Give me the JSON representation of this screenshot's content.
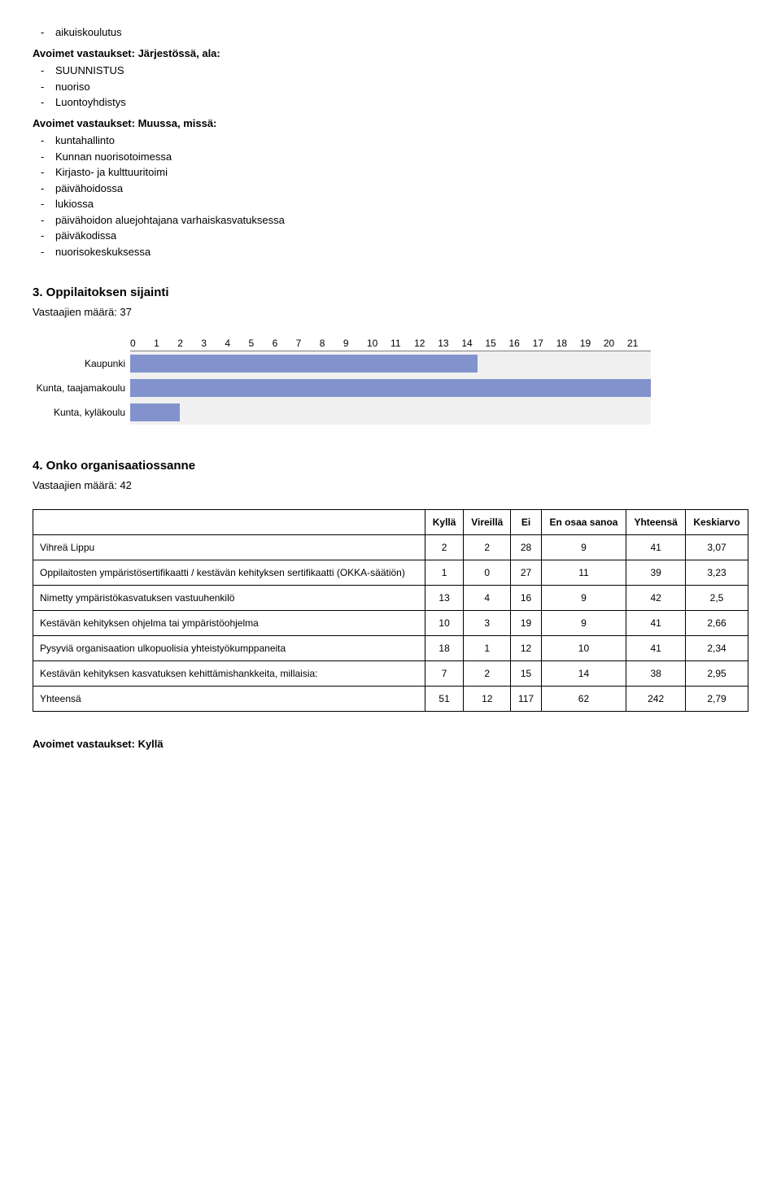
{
  "top_list": {
    "item0": "aikuiskoulutus",
    "heading1": "Avoimet vastaukset: Järjestössä, ala:",
    "items1": [
      "SUUNNISTUS",
      "nuoriso",
      "Luontoyhdistys"
    ],
    "heading2": "Avoimet vastaukset: Muussa, missä:",
    "items2": [
      "kuntahallinto",
      "Kunnan nuorisotoimessa",
      "Kirjasto- ja kulttuuritoimi",
      "päivähoidossa",
      "lukiossa",
      "päivähoidon aluejohtajana varhaiskasvatuksessa",
      "päiväkodissa",
      "nuorisokeskuksessa"
    ]
  },
  "chart_section": {
    "heading": "3. Oppilaitoksen sijainti",
    "subheading": "Vastaajien määrä: 37",
    "chart": {
      "type": "bar",
      "x_ticks": [
        "0",
        "1",
        "2",
        "3",
        "4",
        "5",
        "6",
        "7",
        "8",
        "9",
        "10",
        "11",
        "12",
        "13",
        "14",
        "15",
        "16",
        "17",
        "18",
        "19",
        "20",
        "21"
      ],
      "x_max": 21,
      "bar_color": "#8292cd",
      "bg_row_color": "#f0f0f0",
      "grid_color": "#808080",
      "rows": [
        {
          "label": "Kaupunki",
          "value": 14
        },
        {
          "label": "Kunta, taajamakoulu",
          "value": 21
        },
        {
          "label": "Kunta, kyläkoulu",
          "value": 2
        }
      ]
    }
  },
  "table_section": {
    "heading": "4. Onko organisaatiossanne",
    "subheading": "Vastaajien määrä: 42",
    "columns": [
      "",
      "Kyllä",
      "Vireillä",
      "Ei",
      "En osaa sanoa",
      "Yhteensä",
      "Keskiarvo"
    ],
    "rows": [
      [
        "Vihreä Lippu",
        "2",
        "2",
        "28",
        "9",
        "41",
        "3,07"
      ],
      [
        "Oppilaitosten ympäristösertifikaatti / kestävän kehityksen sertifikaatti (OKKA-säätiön)",
        "1",
        "0",
        "27",
        "11",
        "39",
        "3,23"
      ],
      [
        "Nimetty ympäristökasvatuksen vastuuhenkilö",
        "13",
        "4",
        "16",
        "9",
        "42",
        "2,5"
      ],
      [
        "Kestävän   kehityksen ohjelma tai ympäristöohjelma",
        "10",
        "3",
        "19",
        "9",
        "41",
        "2,66"
      ],
      [
        "Pysyviä organisaation ulkopuolisia yhteistyökumppaneita",
        "18",
        "1",
        "12",
        "10",
        "41",
        "2,34"
      ],
      [
        "Kestävän kehityksen kasvatuksen kehittämishankkeita, millaisia:",
        "7",
        "2",
        "15",
        "14",
        "38",
        "2,95"
      ],
      [
        "Yhteensä",
        "51",
        "12",
        "117",
        "62",
        "242",
        "2,79"
      ]
    ]
  },
  "bottom_heading": "Avoimet vastaukset: Kyllä"
}
